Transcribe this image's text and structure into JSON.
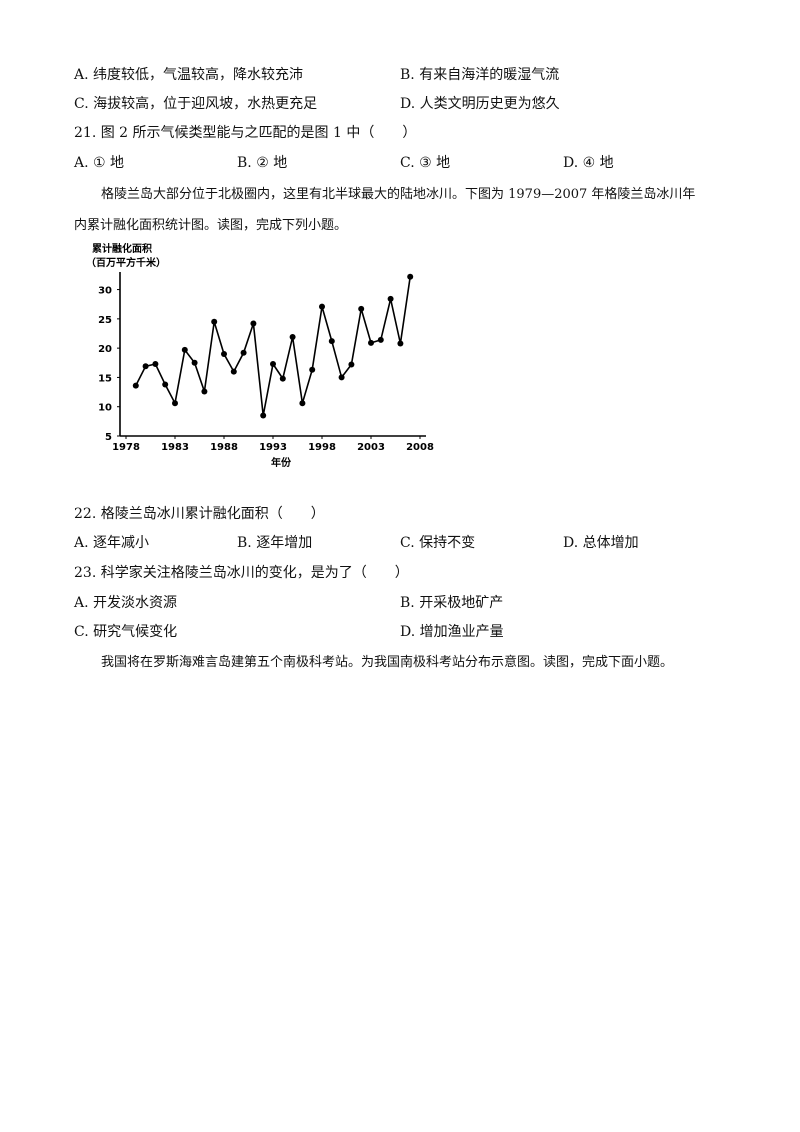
{
  "q20_options": {
    "A": "A. 纬度较低，气温较高，降水较充沛",
    "B": "B. 有来自海洋的暖湿气流",
    "C": "C. 海拔较高，位于迎风坡，水热更充足",
    "D": "D. 人类文明历史更为悠久"
  },
  "q21": {
    "stem": "21. 图 2 所示气候类型能与之匹配的是图 1 中（　　）",
    "A": "A. ① 地",
    "B": "B. ② 地",
    "C": "C. ③ 地",
    "D": "D. ④ 地"
  },
  "intro_greenland": {
    "line1": "格陵兰岛大部分位于北极圈内，这里有北半球最大的陆地冰川。下图为 1979—2007 年格陵兰岛冰川年",
    "line2": "内累计融化面积统计图。读图，完成下列小题。"
  },
  "chart_data": {
    "type": "line",
    "ylabel_line1": "累计融化面积",
    "ylabel_line2": "（百万平方千米）",
    "xlabel": "年份",
    "ylim": [
      5,
      33
    ],
    "xlim": [
      1978,
      2008
    ],
    "x_ticks": [
      "1978",
      "1983",
      "1988",
      "1993",
      "1998",
      "2003",
      "2008"
    ],
    "y_ticks": [
      "5",
      "10",
      "15",
      "20",
      "25",
      "30"
    ],
    "x": [
      1979,
      1980,
      1981,
      1982,
      1983,
      1984,
      1985,
      1986,
      1987,
      1988,
      1989,
      1990,
      1991,
      1992,
      1993,
      1994,
      1995,
      1996,
      1997,
      1998,
      1999,
      2000,
      2001,
      2002,
      2003,
      2004,
      2005,
      2006,
      2007
    ],
    "y": [
      13.6,
      16.9,
      17.3,
      13.8,
      10.6,
      19.7,
      17.5,
      12.6,
      24.5,
      19.0,
      16.0,
      19.2,
      24.2,
      8.5,
      17.3,
      14.8,
      21.9,
      10.6,
      16.3,
      27.1,
      21.2,
      15.0,
      17.2,
      26.7,
      20.9,
      21.4,
      28.4,
      20.8,
      32.2
    ]
  },
  "q22": {
    "stem": "22. 格陵兰岛冰川累计融化面积（　　）",
    "A": "A. 逐年减小",
    "B": "B. 逐年增加",
    "C": "C. 保持不变",
    "D": "D. 总体增加"
  },
  "q23": {
    "stem": "23. 科学家关注格陵兰岛冰川的变化，是为了（　　）",
    "A": "A. 开发淡水资源",
    "B": "B. 开采极地矿产",
    "C": "C. 研究气候变化",
    "D": "D. 增加渔业产量"
  },
  "intro_antarctic": {
    "line1": "我国将在罗斯海难言岛建第五个南极科考站。为我国南极科考站分布示意图。读图，完成下面小题。"
  }
}
